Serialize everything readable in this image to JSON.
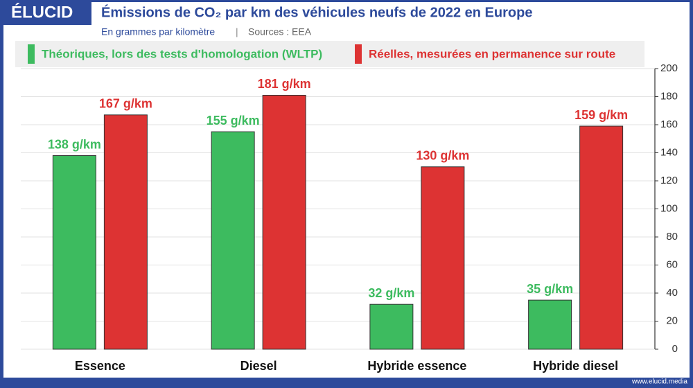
{
  "brand": "ÉLUCID",
  "footer": "www.elucid.media",
  "chart_data": {
    "type": "bar",
    "title": "Émissions de CO₂ par km des véhicules neufs de 2022 en Europe",
    "subtitle": "En grammes par kilomètre",
    "source": "Sources : EEA",
    "categories": [
      "Essence",
      "Diesel",
      "Hybride essence",
      "Hybride diesel"
    ],
    "series": [
      {
        "name": "Théoriques, lors des tests d'homologation (WLTP)",
        "color": "#3dbb5f",
        "values": [
          138,
          155,
          32,
          35
        ],
        "value_labels": [
          "138 g/km",
          "155 g/km",
          "32 g/km",
          "35 g/km"
        ]
      },
      {
        "name": "Réelles, mesurées en permanence sur route",
        "color": "#dd3333",
        "values": [
          167,
          181,
          130,
          159
        ],
        "value_labels": [
          "167 g/km",
          "181 g/km",
          "130 g/km",
          "159 g/km"
        ]
      }
    ],
    "ylim": [
      0,
      200
    ],
    "yticks": [
      0,
      20,
      40,
      60,
      80,
      100,
      120,
      140,
      160,
      180,
      200
    ],
    "grid": true
  }
}
